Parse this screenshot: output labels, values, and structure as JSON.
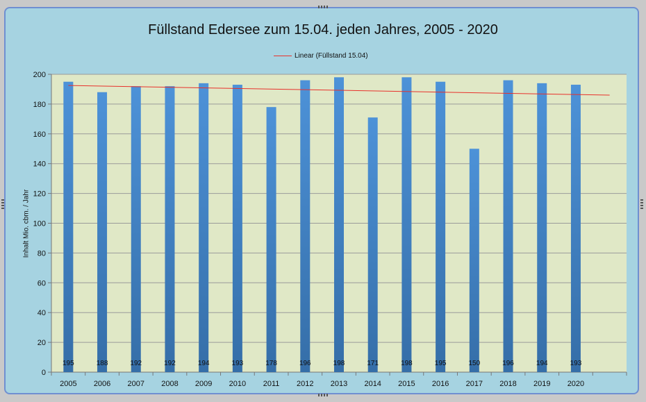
{
  "chart_data": {
    "type": "bar",
    "title": "Füllstand Edersee zum 15.04. jeden Jahres, 2005 - 2020",
    "ylabel": "Inhalt Mio. cbm. / Jahr",
    "xlabel": "",
    "categories": [
      "2005",
      "2006",
      "2007",
      "2008",
      "2009",
      "2010",
      "2011",
      "2012",
      "2013",
      "2014",
      "2015",
      "2016",
      "2017",
      "2018",
      "2019",
      "2020"
    ],
    "values": [
      195,
      188,
      192,
      192,
      194,
      193,
      178,
      196,
      198,
      171,
      198,
      195,
      150,
      196,
      194,
      193
    ],
    "ylim": [
      0,
      200
    ],
    "yticks": [
      0,
      20,
      40,
      60,
      80,
      100,
      120,
      140,
      160,
      180,
      200
    ],
    "grid": true,
    "legend": {
      "placement": "top",
      "entries": [
        "Linear (Füllstand 15.04)"
      ]
    },
    "trendline": {
      "name": "Linear (Füllstand 15.04)",
      "start": 192.5,
      "end": 186,
      "extends_periods": 1
    },
    "colors": {
      "bar": "#3f7dc2",
      "trend": "#e8302a",
      "plot_bg": "#e0e8c6",
      "chart_bg": "#a6d3e1"
    }
  }
}
